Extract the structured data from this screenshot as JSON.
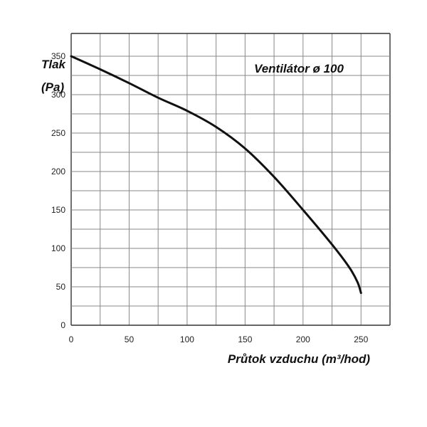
{
  "chart_data": {
    "type": "line",
    "title": "Ventilátor ø 100",
    "xlabel": "Průtok vzduchu (m³/hod)",
    "ylabel_line1": "Tlak",
    "ylabel_line2": "(Pa)",
    "xlim": [
      0,
      275
    ],
    "ylim": [
      0,
      350
    ],
    "x_ticks": [
      0,
      50,
      100,
      150,
      200,
      250
    ],
    "y_ticks": [
      0,
      50,
      100,
      150,
      200,
      250,
      300,
      350
    ],
    "grid": true,
    "grid_x_step": 25,
    "grid_y_step": 25,
    "legend": "none",
    "series": [
      {
        "color": "#111111",
        "x": [
          0,
          25,
          50,
          75,
          100,
          125,
          150,
          175,
          200,
          225,
          240,
          247,
          250
        ],
        "y": [
          350,
          333,
          315,
          296,
          279,
          258,
          230,
          193,
          150,
          105,
          75,
          56,
          42
        ]
      }
    ]
  }
}
